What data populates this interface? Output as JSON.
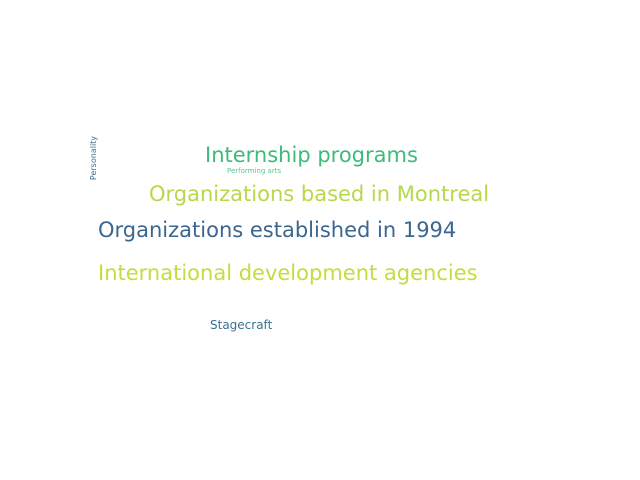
{
  "wordcloud": {
    "words": [
      {
        "text": "Internship programs",
        "color": "#3dbb7a"
      },
      {
        "text": "Performing arts",
        "color": "#5cc68a"
      },
      {
        "text": "Organizations based in Montreal",
        "color": "#b6d84a"
      },
      {
        "text": "Organizations established in 1994",
        "color": "#3b6690"
      },
      {
        "text": "International development agencies",
        "color": "#c5dc3c"
      },
      {
        "text": "Stagecraft",
        "color": "#3b7191"
      },
      {
        "text": "Personality",
        "color": "#3b7191"
      }
    ]
  }
}
